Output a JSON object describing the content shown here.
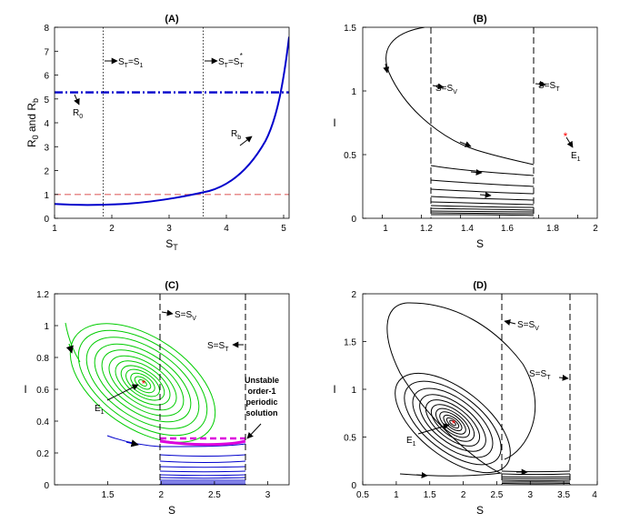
{
  "chart_data": [
    {
      "id": "A",
      "type": "line",
      "title": "(A)",
      "xlabel": "S",
      "xlabel_sub": "T",
      "ylabel": "R",
      "ylabel_sub": "0",
      "ylabel_mid": " and R",
      "ylabel_sub2": "b",
      "xlim": [
        1,
        5.1
      ],
      "ylim": [
        0,
        8
      ],
      "xticks": [
        "1",
        "2",
        "3",
        "4",
        "5"
      ],
      "yticks": [
        "0",
        "1",
        "2",
        "3",
        "4",
        "5",
        "6",
        "7",
        "8"
      ],
      "series": [
        {
          "name": "R_b",
          "color": "#0000cc",
          "style": "solid",
          "x": [
            1,
            1.5,
            2,
            2.5,
            3,
            3.3,
            3.6,
            3.9,
            4.2,
            4.4,
            4.6,
            4.8,
            4.95,
            5.1
          ],
          "y": [
            0.6,
            0.55,
            0.56,
            0.63,
            0.78,
            0.92,
            1.1,
            1.45,
            2.05,
            2.75,
            3.8,
            5.3,
            6.5,
            7.6
          ]
        },
        {
          "name": "R_0",
          "color": "#0000cc",
          "style": "dashdot",
          "x": [
            1,
            5.1
          ],
          "y": [
            5.2,
            5.2
          ]
        },
        {
          "name": "threshold",
          "color": "#e06666",
          "style": "dashed",
          "x": [
            1,
            5.1
          ],
          "y": [
            1,
            1
          ]
        }
      ],
      "vlines": [
        1.85,
        3.6
      ],
      "annotations": [
        {
          "label": "S",
          "sub": "T",
          "rest": "=S",
          "sub2": "1"
        },
        {
          "label": "S",
          "sub": "T",
          "rest": "=S",
          "sub2": "T",
          "sup": "*"
        },
        {
          "label": "R",
          "sub": "0"
        },
        {
          "label": "R",
          "sub": "b"
        }
      ]
    },
    {
      "id": "B",
      "type": "line",
      "title": "(B)",
      "xlabel": "S",
      "ylabel": "I",
      "xlim": [
        0.8,
        2
      ],
      "ylim": [
        0,
        1.5
      ],
      "xticks": [
        "1",
        "1.2",
        "1.4",
        "1.6",
        "1.8",
        "2"
      ],
      "yticks": [
        "0",
        "0.5",
        "1",
        "1.5"
      ],
      "vlines": [
        1.22,
        1.7
      ],
      "equilibrium": [
        1.87,
        0.64
      ],
      "annotations": [
        {
          "label": "S=S",
          "sub": "V"
        },
        {
          "label": "S=S",
          "sub": "T"
        },
        {
          "label": "E",
          "sub": "1"
        }
      ]
    },
    {
      "id": "C",
      "type": "line",
      "title": "(C)",
      "xlabel": "S",
      "ylabel": "I",
      "xlim": [
        1,
        3.2
      ],
      "ylim": [
        0,
        1.2
      ],
      "xticks": [
        "1.5",
        "2",
        "2.5",
        "3"
      ],
      "yticks": [
        "0",
        "0.2",
        "0.4",
        "0.6",
        "0.8",
        "1",
        "1.2"
      ],
      "vlines": [
        2,
        2.8
      ],
      "equilibrium": [
        1.84,
        0.64
      ],
      "periodic_band": [
        0.26,
        0.28
      ],
      "annotations": [
        {
          "label": "S=S",
          "sub": "V"
        },
        {
          "label": "S=S",
          "sub": "T"
        },
        {
          "label": "E",
          "sub": "1"
        },
        {
          "lines": [
            "Unstable",
            "order-1",
            "periodic",
            "solution"
          ]
        }
      ]
    },
    {
      "id": "D",
      "type": "line",
      "title": "(D)",
      "xlabel": "S",
      "ylabel": "I",
      "xlim": [
        0.5,
        4
      ],
      "ylim": [
        0,
        2
      ],
      "xticks": [
        "0.5",
        "1",
        "1.5",
        "2",
        "2.5",
        "3",
        "3.5",
        "4"
      ],
      "yticks": [
        "0",
        "0.5",
        "1",
        "1.5",
        "2"
      ],
      "vlines": [
        2.55,
        3.6
      ],
      "equilibrium": [
        1.85,
        0.65
      ],
      "annotations": [
        {
          "label": "S=S",
          "sub": "V"
        },
        {
          "label": "S=S",
          "sub": "T"
        },
        {
          "label": "E",
          "sub": "1"
        }
      ]
    }
  ],
  "colors": {
    "blue": "#0000cc",
    "red_dashed": "#e06666",
    "green": "#00cc00",
    "magenta": "#dd00dd",
    "equilibrium": "#ff0000"
  }
}
